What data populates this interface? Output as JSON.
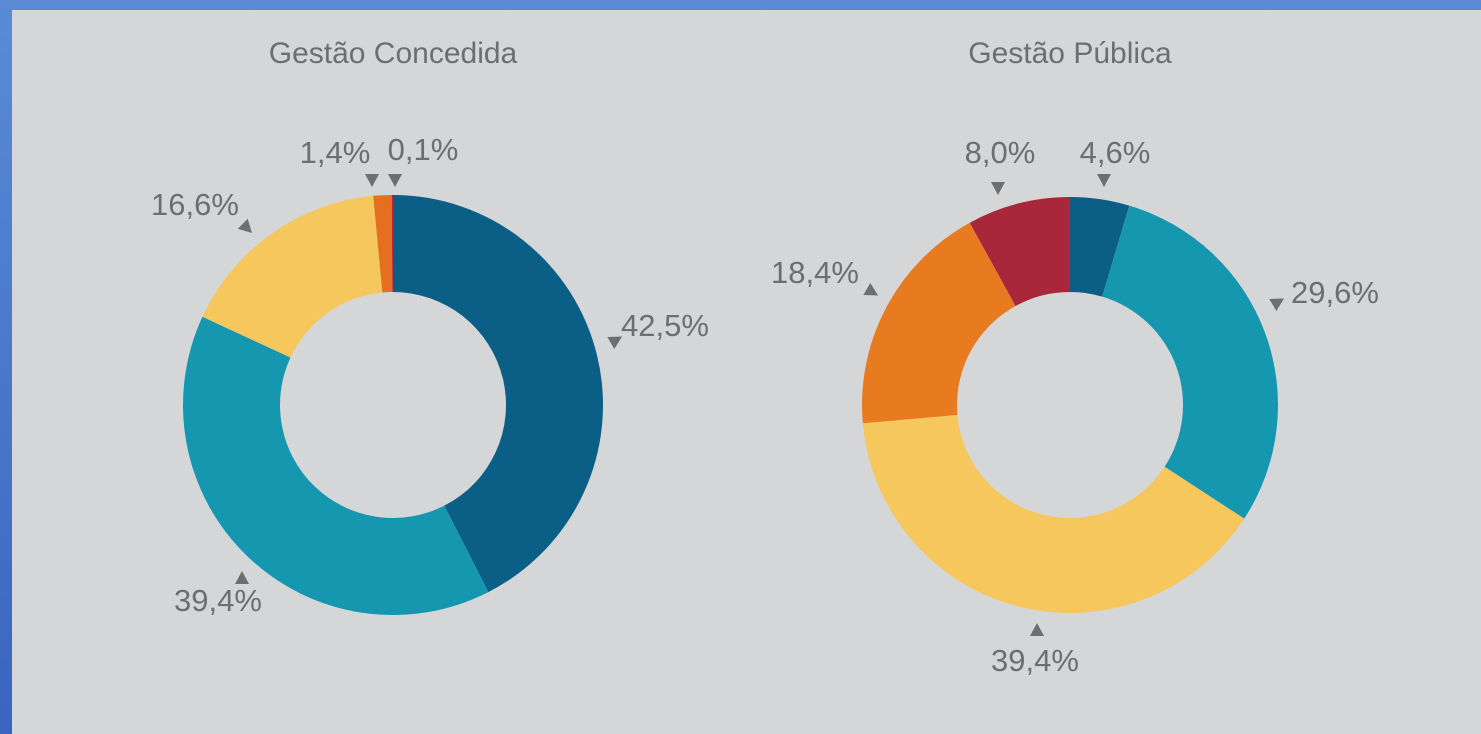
{
  "chart_data": [
    {
      "type": "donut",
      "title": "Gestão Concedida",
      "values": [
        42.5,
        39.4,
        16.6,
        1.4,
        0.1
      ],
      "value_labels": [
        "42,5%",
        "39,4%",
        "16,6%",
        "1,4%",
        "0,1%"
      ],
      "colors": [
        "#0b5f87",
        "#1597af",
        "#f6c75c",
        "#e4701f",
        "#b8283a"
      ]
    },
    {
      "type": "donut",
      "title": "Gestão Pública",
      "values": [
        4.6,
        29.6,
        39.4,
        18.4,
        8.0
      ],
      "value_labels": [
        "4,6%",
        "29,6%",
        "39,4%",
        "18,4%",
        "8,0%"
      ],
      "colors": [
        "#0b5f87",
        "#1597af",
        "#f6c75c",
        "#e87a1f",
        "#a8273b"
      ]
    }
  ]
}
